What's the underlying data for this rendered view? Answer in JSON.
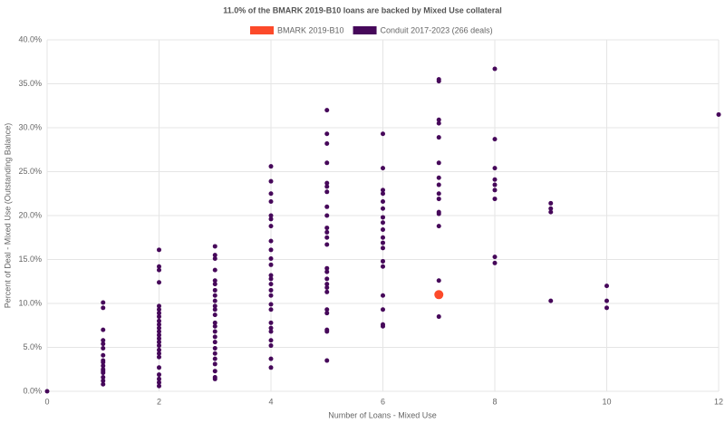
{
  "chart_data": {
    "type": "scatter",
    "title": "11.0% of the BMARK 2019-B10 loans are backed by Mixed Use collateral",
    "x_label": "Number of Loans - Mixed Use",
    "y_label": "Percent of Deal - Mixed Use (Outstanding Balance)",
    "xlim": [
      0,
      12
    ],
    "xticks": [
      0,
      2,
      4,
      6,
      8,
      10,
      12
    ],
    "ylim": [
      0,
      40
    ],
    "yticks": [
      {
        "value": 0,
        "label": "0.0%"
      },
      {
        "value": 5,
        "label": "5.0%"
      },
      {
        "value": 10,
        "label": "10.0%"
      },
      {
        "value": 15,
        "label": "15.0%"
      },
      {
        "value": 20,
        "label": "20.0%"
      },
      {
        "value": 25,
        "label": "25.0%"
      },
      {
        "value": 30,
        "label": "30.0%"
      },
      {
        "value": 35,
        "label": "35.0%"
      },
      {
        "value": 40,
        "label": "40.0%"
      }
    ],
    "grid": true,
    "series": [
      {
        "name": "BMARK 2019-B10",
        "color": "#fc4a2a",
        "x": [
          7
        ],
        "values": [
          11.0
        ]
      },
      {
        "name": "Conduit 2017-2023 (266 deals)",
        "color": "#46085a",
        "x": [
          0,
          1,
          1,
          1,
          1,
          1,
          1,
          1,
          1,
          1,
          1,
          1,
          1,
          1,
          1,
          1,
          1,
          2,
          2,
          2,
          2,
          2,
          2,
          2,
          2,
          2,
          2,
          2,
          2,
          2,
          2,
          2,
          2,
          2,
          2,
          2,
          2,
          2,
          2,
          2,
          2,
          3,
          3,
          3,
          3,
          3,
          3,
          3,
          3,
          3,
          3,
          3,
          3,
          3,
          3,
          3,
          3,
          3,
          3,
          3,
          3,
          3,
          3,
          3,
          3,
          4,
          4,
          4,
          4,
          4,
          4,
          4,
          4,
          4,
          4,
          4,
          4,
          4,
          4,
          4,
          4,
          4,
          4,
          4,
          4,
          4,
          4,
          4,
          4,
          4,
          5,
          5,
          5,
          5,
          5,
          5,
          5,
          5,
          5,
          5,
          5,
          5,
          5,
          5,
          5,
          5,
          5,
          5,
          5,
          5,
          5,
          5,
          5,
          5,
          6,
          6,
          6,
          6,
          6,
          6,
          6,
          6,
          6,
          6,
          6,
          6,
          6,
          6,
          6,
          6,
          6,
          6,
          7,
          7,
          7,
          7,
          7,
          7,
          7,
          7,
          7,
          7,
          7,
          7,
          7,
          7,
          7,
          8,
          8,
          8,
          8,
          8,
          8,
          8,
          8,
          8,
          9,
          9,
          9,
          9,
          10,
          10,
          10,
          12
        ],
        "values": [
          0,
          10.1,
          9.5,
          7.0,
          5.8,
          5.4,
          4.9,
          4.1,
          3.3,
          2.9,
          2.5,
          2.1,
          1.6,
          1.2,
          0.8,
          3.5,
          2.3,
          16.1,
          14.2,
          13.8,
          12.4,
          9.7,
          9.3,
          8.9,
          8.5,
          8.0,
          7.6,
          7.2,
          6.4,
          5.6,
          5.2,
          4.7,
          4.3,
          3.9,
          2.7,
          1.9,
          1.4,
          1.0,
          0.6,
          6.8,
          6.0,
          16.5,
          15.5,
          15.1,
          13.8,
          12.6,
          12.2,
          11.5,
          10.9,
          10.3,
          9.7,
          9.3,
          8.7,
          7.8,
          7.4,
          6.8,
          6.2,
          5.6,
          4.9,
          4.3,
          3.7,
          3.1,
          2.3,
          1.6,
          1.4,
          25.6,
          23.9,
          22.5,
          21.6,
          20.0,
          19.6,
          18.8,
          17.1,
          16.1,
          15.1,
          14.4,
          13.2,
          12.8,
          12.2,
          11.5,
          10.9,
          9.9,
          9.3,
          7.8,
          7.2,
          6.8,
          5.8,
          5.2,
          3.7,
          2.7,
          32.0,
          29.3,
          28.2,
          26.0,
          23.7,
          23.3,
          22.7,
          21.0,
          20.0,
          18.6,
          18.1,
          17.5,
          16.7,
          14.0,
          13.6,
          12.8,
          12.2,
          11.8,
          11.3,
          9.3,
          7.0,
          3.5,
          8.9,
          6.8,
          29.3,
          25.4,
          22.9,
          22.5,
          21.6,
          20.8,
          19.8,
          19.2,
          18.4,
          17.5,
          16.9,
          16.3,
          14.8,
          14.2,
          10.9,
          9.3,
          7.6,
          7.4,
          35.5,
          35.3,
          30.9,
          30.5,
          28.9,
          26.0,
          24.3,
          23.5,
          22.5,
          21.9,
          20.4,
          20.2,
          18.8,
          12.6,
          8.5,
          36.7,
          28.7,
          25.4,
          24.1,
          23.5,
          22.9,
          21.9,
          15.3,
          14.6,
          21.4,
          20.8,
          20.4,
          10.3,
          12.0,
          10.3,
          9.5,
          31.5
        ]
      }
    ]
  }
}
